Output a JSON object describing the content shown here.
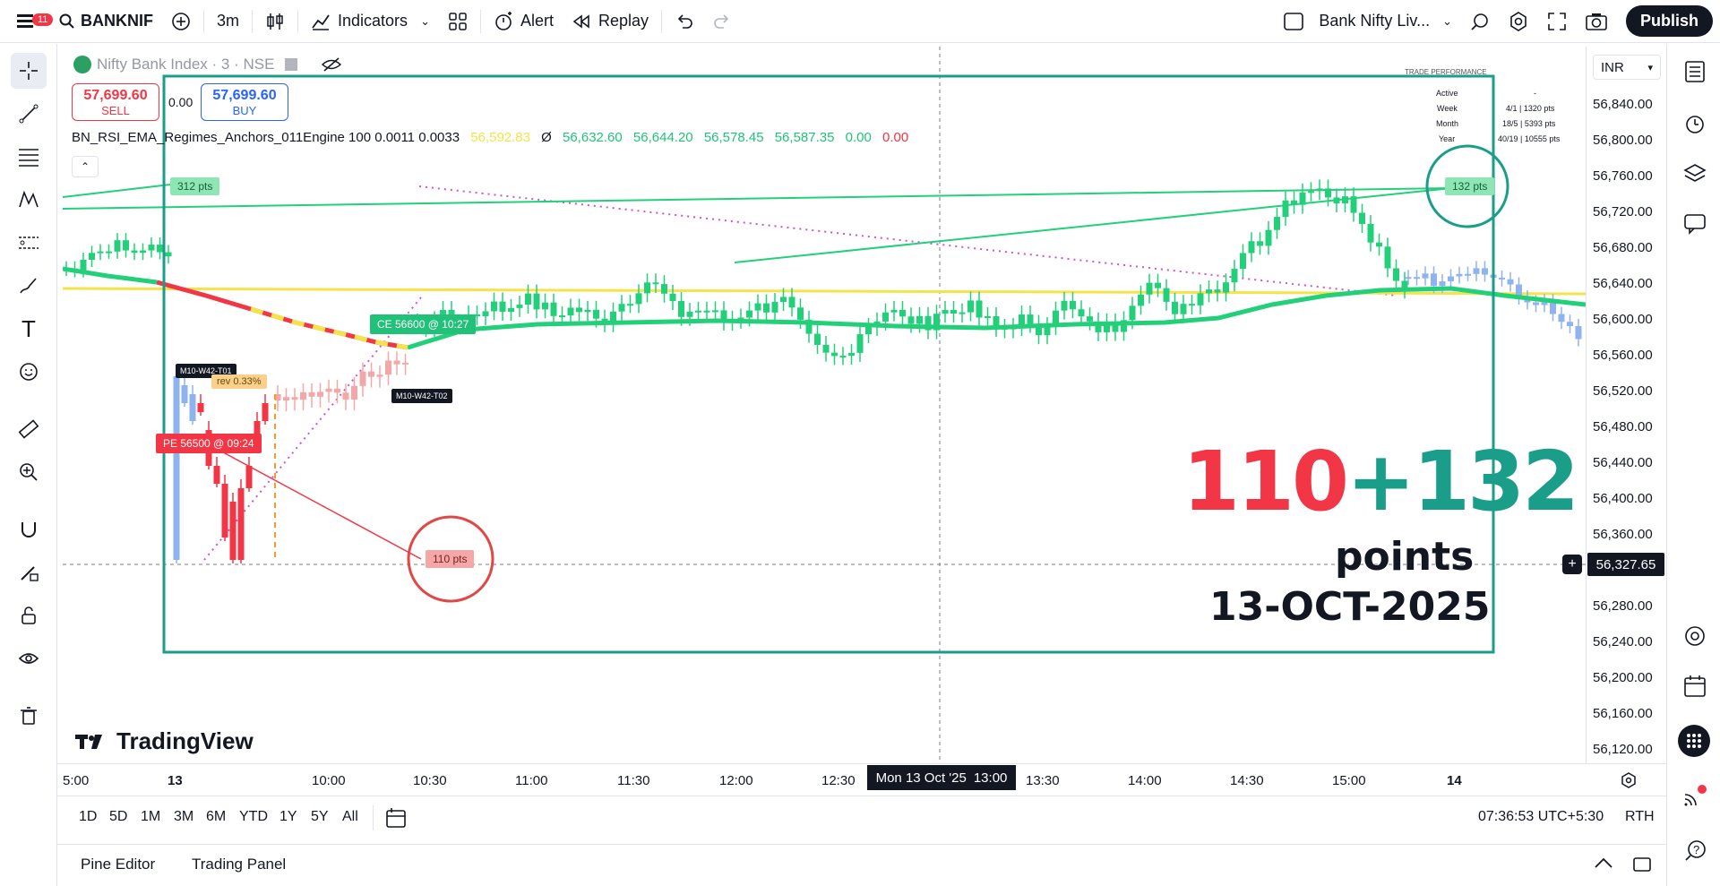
{
  "topbar": {
    "notification_count": "11",
    "symbol": "BANKNIF",
    "interval": "3m",
    "indicators": "Indicators",
    "alert": "Alert",
    "replay": "Replay",
    "layout_name": "Bank Nifty Liv...",
    "publish": "Publish"
  },
  "legend": {
    "title": "Nifty Bank Index · 3 · NSE",
    "sell_price": "57,699.60",
    "sell_label": "SELL",
    "spread": "0.00",
    "buy_price": "57,699.60",
    "buy_label": "BUY",
    "indicator_name": "BN_RSI_EMA_Regimes_Anchors_011Engine 100 0.0011 0.0033",
    "v1": "56,592.83",
    "v_sym": "Ø",
    "v2": "56,632.60",
    "v3": "56,644.20",
    "v4": "56,578.45",
    "v5": "56,587.35",
    "v6": "0.00",
    "v7": "0.00"
  },
  "trade_performance": {
    "title": "TRADE PERFORMANCE",
    "rows": [
      {
        "label": "Active",
        "value": "-"
      },
      {
        "label": "Week",
        "value": "4/1 | 1320 pts"
      },
      {
        "label": "Month",
        "value": "18/5 | 5393 pts"
      },
      {
        "label": "Year",
        "value": "40/19 | 10555 pts"
      }
    ]
  },
  "annotations": {
    "pts_312": "312 pts",
    "pts_132": "132 pts",
    "pts_110": "110 pts",
    "ce_label": "CE 56600 @ 10:27",
    "pe_label": "PE 56500 @ 09:24",
    "tag_t01": "M10-W42-T01",
    "tag_t02": "M10-W42-T02",
    "rev_label": "rev 0.33%"
  },
  "overlay": {
    "red_part": "110",
    "plus": "+",
    "green_part": "132",
    "points": "points",
    "date": "13-OCT-2025"
  },
  "price_scale": {
    "currency": "INR",
    "labels": [
      "56,840.00",
      "56,800.00",
      "56,760.00",
      "56,720.00",
      "56,680.00",
      "56,640.00",
      "56,600.00",
      "56,560.00",
      "56,520.00",
      "56,480.00",
      "56,440.00",
      "56,400.00",
      "56,360.00",
      "56,280.00",
      "56,240.00",
      "56,200.00",
      "56,160.00",
      "56,120.00"
    ],
    "current_price": "56,327.65"
  },
  "time_axis": {
    "labels": [
      "5:00",
      "13",
      "10:00",
      "10:30",
      "11:00",
      "11:30",
      "12:00",
      "12:30",
      "13:30",
      "14:00",
      "14:30",
      "15:00",
      "14"
    ],
    "crosshair_date": "Mon 13 Oct '25",
    "crosshair_time": "13:00"
  },
  "range_bar": {
    "ranges": [
      "1D",
      "5D",
      "1M",
      "3M",
      "6M",
      "YTD",
      "1Y",
      "5Y",
      "All"
    ],
    "clock": "07:36:53 UTC+5:30",
    "session": "RTH"
  },
  "bottom_panel": {
    "pine_editor": "Pine Editor",
    "trading_panel": "Trading Panel"
  },
  "branding": {
    "logo_text": "TradingView"
  },
  "colors": {
    "up": "#22d07a",
    "down": "#f23645",
    "box": "#1a9e8a",
    "yellow": "#f5e34a",
    "blue_candle": "#8fb3ef",
    "pink_candle": "#f4a7a7",
    "magenta": "#d34fd4"
  }
}
